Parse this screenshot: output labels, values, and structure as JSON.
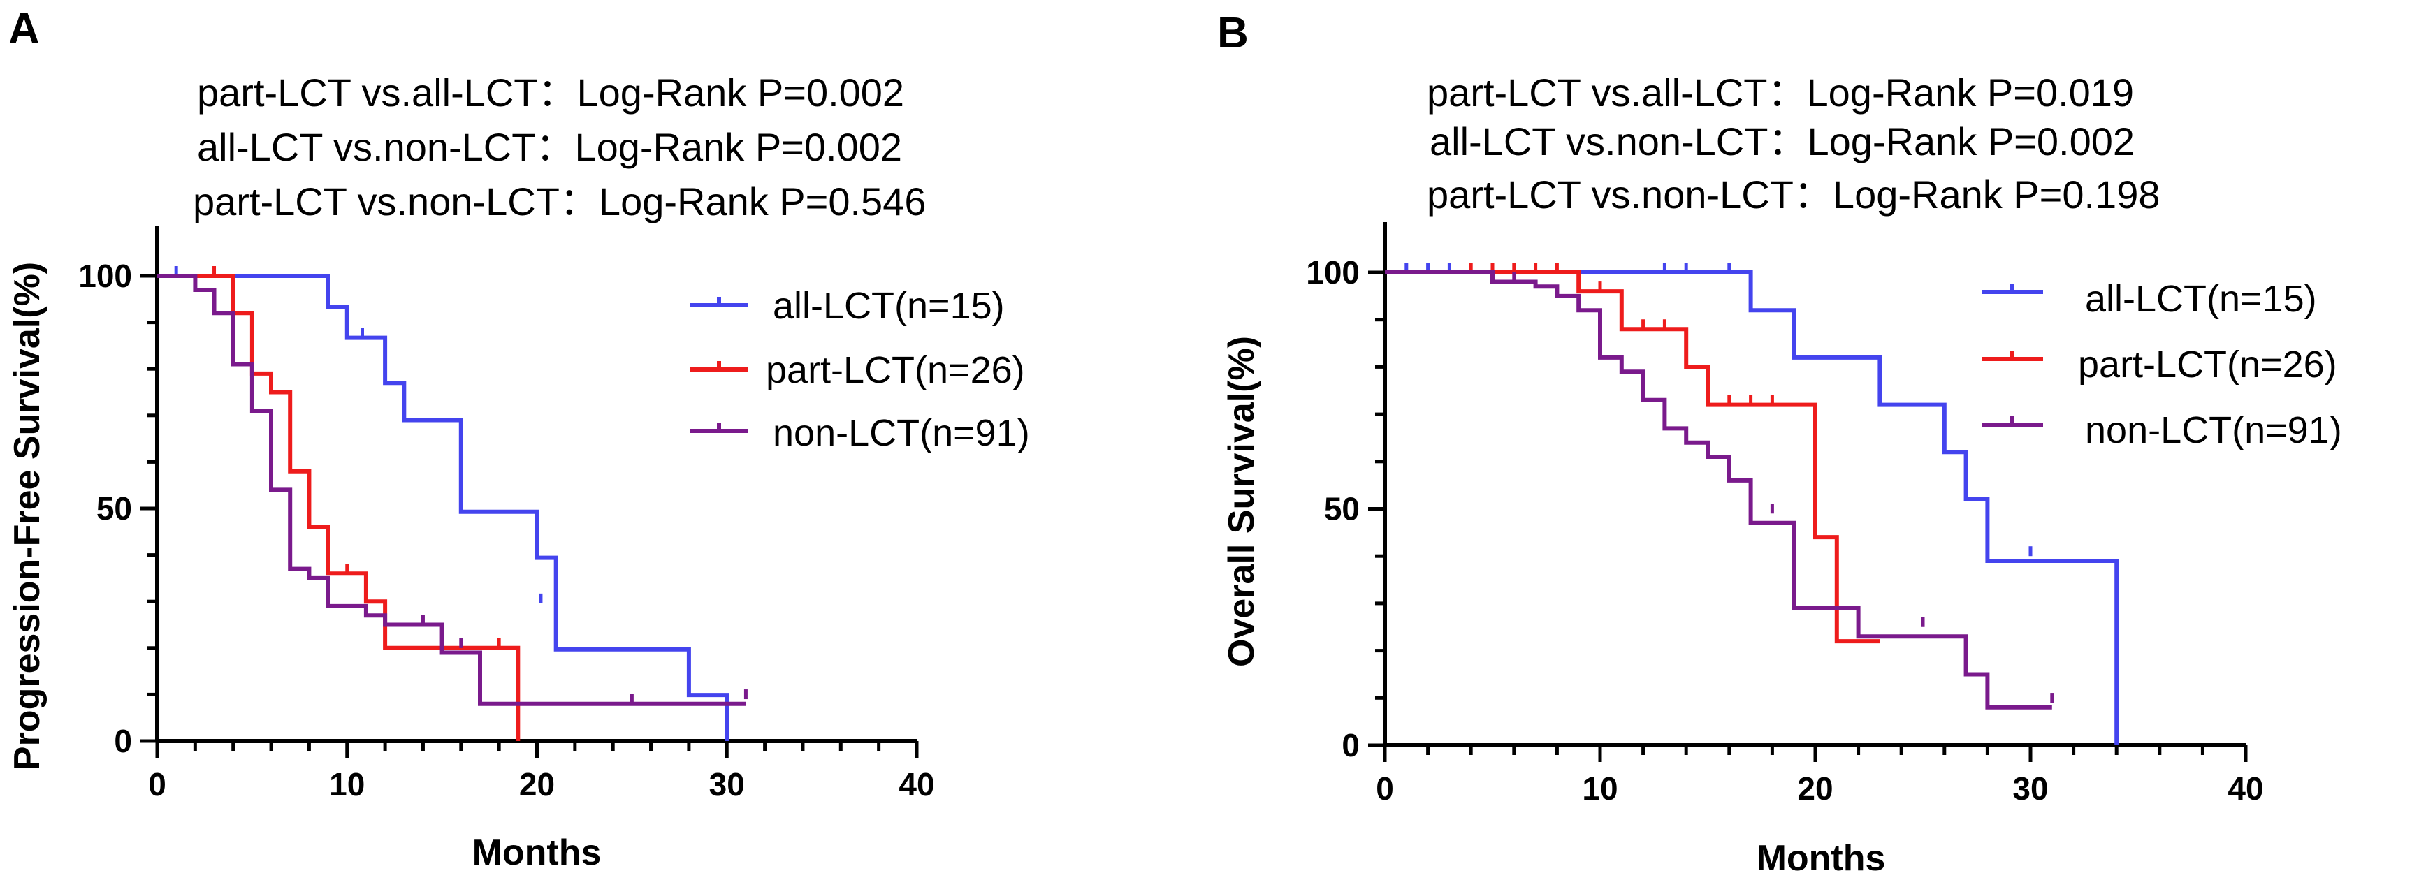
{
  "chart_data": [
    {
      "type": "line",
      "subtype": "kaplan-meier",
      "panel": "A",
      "annotations": [
        "part-LCT vs.all-LCT：Log-Rank P=0.002",
        "all-LCT vs.non-LCT：Log-Rank P=0.002",
        "part-LCT vs.non-LCT：Log-Rank P=0.546"
      ],
      "xlabel": "Months",
      "ylabel": "Progression-Free Survival(%)",
      "xlim": [
        0,
        40
      ],
      "ylim": [
        0,
        100
      ],
      "xticks": [
        0,
        10,
        20,
        30,
        40
      ],
      "yticks": [
        0,
        50,
        100
      ],
      "xtick_labels": [
        "0",
        "10",
        "20",
        "30",
        "40"
      ],
      "ytick_labels": [
        "0",
        "50",
        "100"
      ],
      "legend_position": "right",
      "series": [
        {
          "name": "all-LCT(n=15)",
          "color": "#4444ee",
          "steps": [
            [
              0,
              100
            ],
            [
              9,
              100
            ],
            [
              9,
              93.3
            ],
            [
              10,
              93.3
            ],
            [
              10,
              86.7
            ],
            [
              12,
              86.7
            ],
            [
              12,
              77
            ],
            [
              13,
              77
            ],
            [
              13,
              69
            ],
            [
              16,
              69
            ],
            [
              16,
              49.3
            ],
            [
              20,
              49.3
            ],
            [
              20,
              39.4
            ],
            [
              21,
              39.4
            ],
            [
              21,
              19.7
            ],
            [
              28,
              19.7
            ],
            [
              28,
              9.9
            ],
            [
              30,
              9.9
            ],
            [
              30,
              0
            ]
          ],
          "censors": [
            [
              1,
              100
            ],
            [
              10.8,
              86.7
            ],
            [
              20.2,
              29.6
            ]
          ]
        },
        {
          "name": "part-LCT(n=26)",
          "color": "#ee1c1c",
          "steps": [
            [
              0,
              100
            ],
            [
              4,
              100
            ],
            [
              4,
              92
            ],
            [
              5,
              92
            ],
            [
              5,
              79
            ],
            [
              6,
              79
            ],
            [
              6,
              75
            ],
            [
              7,
              75
            ],
            [
              7,
              58
            ],
            [
              8,
              58
            ],
            [
              8,
              46
            ],
            [
              9,
              46
            ],
            [
              9,
              36
            ],
            [
              11,
              36
            ],
            [
              11,
              30
            ],
            [
              12,
              30
            ],
            [
              12,
              20
            ],
            [
              19,
              20
            ],
            [
              19,
              0
            ]
          ],
          "censors": [
            [
              3,
              100
            ],
            [
              10,
              36
            ],
            [
              18,
              20
            ]
          ]
        },
        {
          "name": "non-LCT(n=91)",
          "color": "#7a1a8c",
          "steps": [
            [
              0,
              100
            ],
            [
              2,
              100
            ],
            [
              2,
              97
            ],
            [
              3,
              97
            ],
            [
              3,
              92
            ],
            [
              4,
              92
            ],
            [
              4,
              81
            ],
            [
              5,
              81
            ],
            [
              5,
              71
            ],
            [
              6,
              71
            ],
            [
              6,
              54
            ],
            [
              7,
              54
            ],
            [
              7,
              37
            ],
            [
              8,
              37
            ],
            [
              8,
              35
            ],
            [
              9,
              35
            ],
            [
              9,
              29
            ],
            [
              11,
              29
            ],
            [
              11,
              27
            ],
            [
              12,
              27
            ],
            [
              12,
              25
            ],
            [
              15,
              25
            ],
            [
              15,
              19
            ],
            [
              17,
              19
            ],
            [
              17,
              8
            ],
            [
              31,
              8
            ]
          ],
          "censors": [
            [
              14,
              25
            ],
            [
              16,
              20
            ],
            [
              25,
              8
            ],
            [
              31,
              9
            ]
          ]
        }
      ]
    },
    {
      "type": "line",
      "subtype": "kaplan-meier",
      "panel": "B",
      "annotations": [
        "part-LCT vs.all-LCT：Log-Rank P=0.019",
        "all-LCT vs.non-LCT：Log-Rank P=0.002",
        "part-LCT vs.non-LCT：Log-Rank P=0.198"
      ],
      "xlabel": "Months",
      "ylabel": "Overall Survival(%)",
      "xlim": [
        0,
        40
      ],
      "ylim": [
        0,
        100
      ],
      "xticks": [
        0,
        10,
        20,
        30,
        40
      ],
      "yticks": [
        0,
        50,
        100
      ],
      "xtick_labels": [
        "0",
        "10",
        "20",
        "30",
        "40"
      ],
      "ytick_labels": [
        "0",
        "50",
        "100"
      ],
      "legend_position": "right",
      "series": [
        {
          "name": "all-LCT(n=15)",
          "color": "#4444ee",
          "steps": [
            [
              0,
              100
            ],
            [
              17,
              100
            ],
            [
              17,
              92
            ],
            [
              19,
              92
            ],
            [
              19,
              82
            ],
            [
              23,
              82
            ],
            [
              23,
              72
            ],
            [
              26,
              72
            ],
            [
              26,
              62
            ],
            [
              27,
              62
            ],
            [
              27,
              52
            ],
            [
              28,
              52
            ],
            [
              28,
              39
            ],
            [
              34,
              39
            ],
            [
              34,
              0
            ]
          ],
          "censors": [
            [
              1,
              100
            ],
            [
              2,
              100
            ],
            [
              3,
              100
            ],
            [
              13,
              100
            ],
            [
              14,
              100
            ],
            [
              16,
              100
            ],
            [
              30,
              40
            ]
          ]
        },
        {
          "name": "part-LCT(n=26)",
          "color": "#ee1c1c",
          "steps": [
            [
              0,
              100
            ],
            [
              9,
              100
            ],
            [
              9,
              96
            ],
            [
              11,
              96
            ],
            [
              11,
              88
            ],
            [
              14,
              88
            ],
            [
              14,
              80
            ],
            [
              15,
              80
            ],
            [
              15,
              72
            ],
            [
              20,
              72
            ],
            [
              20,
              44
            ],
            [
              21,
              44
            ],
            [
              21,
              22
            ],
            [
              23,
              22
            ]
          ],
          "censors": [
            [
              4,
              100
            ],
            [
              5,
              100
            ],
            [
              6,
              100
            ],
            [
              7,
              100
            ],
            [
              8,
              100
            ],
            [
              10,
              96
            ],
            [
              12,
              88
            ],
            [
              13,
              88
            ],
            [
              16,
              72
            ],
            [
              17,
              72
            ],
            [
              18,
              72
            ]
          ]
        },
        {
          "name": "non-LCT(n=91)",
          "color": "#7a1a8c",
          "steps": [
            [
              0,
              100
            ],
            [
              5,
              100
            ],
            [
              5,
              98
            ],
            [
              7,
              98
            ],
            [
              7,
              97
            ],
            [
              8,
              97
            ],
            [
              8,
              95
            ],
            [
              9,
              95
            ],
            [
              9,
              92
            ],
            [
              10,
              92
            ],
            [
              10,
              82
            ],
            [
              11,
              82
            ],
            [
              11,
              79
            ],
            [
              12,
              79
            ],
            [
              12,
              73
            ],
            [
              13,
              73
            ],
            [
              13,
              67
            ],
            [
              14,
              67
            ],
            [
              14,
              64
            ],
            [
              15,
              64
            ],
            [
              15,
              61
            ],
            [
              16,
              61
            ],
            [
              16,
              56
            ],
            [
              17,
              56
            ],
            [
              17,
              47
            ],
            [
              19,
              47
            ],
            [
              19,
              29
            ],
            [
              22,
              29
            ],
            [
              22,
              23
            ],
            [
              27,
              23
            ],
            [
              27,
              15
            ],
            [
              28,
              15
            ],
            [
              28,
              8
            ],
            [
              31,
              8
            ]
          ],
          "censors": [
            [
              6,
              98
            ],
            [
              18,
              49
            ],
            [
              25,
              25
            ],
            [
              31,
              9
            ]
          ]
        }
      ]
    }
  ]
}
